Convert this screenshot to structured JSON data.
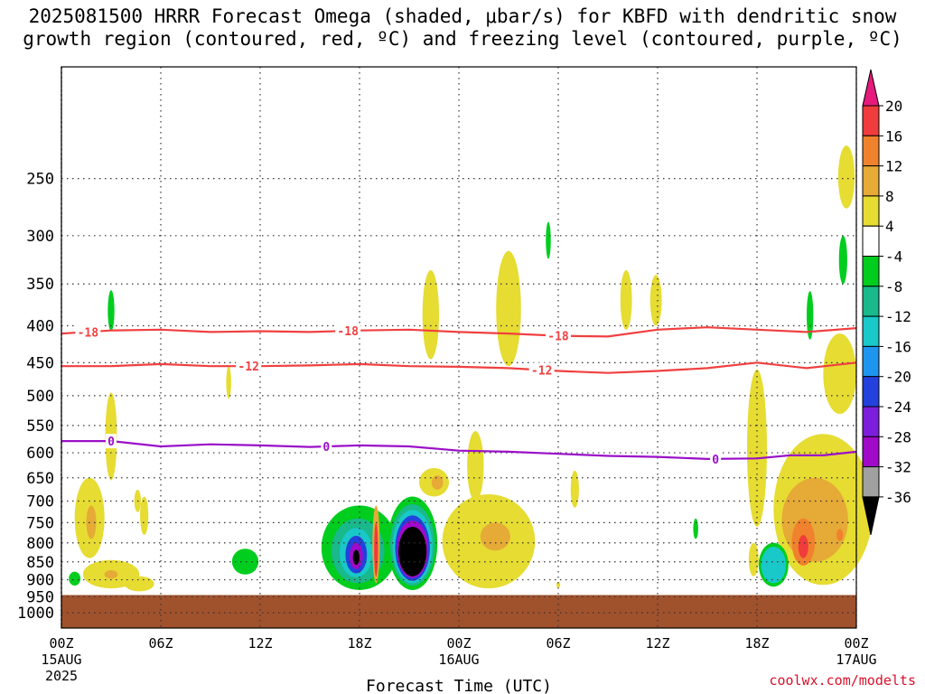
{
  "title_line1": "2025081500 HRRR Forecast Omega (shaded, μbar/s) for KBFD with dendritic snow",
  "title_line2": "growth region (contoured, red, ºC) and freezing level (contoured, purple, ºC)",
  "credit": "coolwx.com/modelts",
  "colors": {
    "ground": "#a0522d",
    "dendritic_contour": "#f04040",
    "freezing_contour": "#9a10c8"
  },
  "chart_data": {
    "type": "heatmap",
    "title": "2025081500 HRRR Forecast Omega (shaded, μbar/s) for KBFD with dendritic snow growth region (contoured, red, ºC) and freezing level (contoured, purple, ºC)",
    "xlabel": "Forecast Time (UTC)",
    "ylabel": "",
    "xlim": [
      0,
      48
    ],
    "ylim": [
      1050,
      175
    ],
    "y_scale": "log-pressure",
    "grid": true,
    "x_ticks": [
      {
        "hour": 0,
        "label": "00Z",
        "sub1": "15AUG",
        "sub2": "2025"
      },
      {
        "hour": 6,
        "label": "06Z",
        "sub1": "",
        "sub2": ""
      },
      {
        "hour": 12,
        "label": "12Z",
        "sub1": "",
        "sub2": ""
      },
      {
        "hour": 18,
        "label": "18Z",
        "sub1": "",
        "sub2": ""
      },
      {
        "hour": 24,
        "label": "00Z",
        "sub1": "16AUG",
        "sub2": ""
      },
      {
        "hour": 30,
        "label": "06Z",
        "sub1": "",
        "sub2": ""
      },
      {
        "hour": 36,
        "label": "12Z",
        "sub1": "",
        "sub2": ""
      },
      {
        "hour": 42,
        "label": "18Z",
        "sub1": "",
        "sub2": ""
      },
      {
        "hour": 48,
        "label": "00Z",
        "sub1": "17AUG",
        "sub2": ""
      }
    ],
    "y_ticks": [
      250,
      300,
      350,
      400,
      450,
      500,
      550,
      600,
      650,
      700,
      750,
      800,
      850,
      900,
      950,
      1000
    ],
    "colorbar": {
      "labels": [
        "20",
        "16",
        "12",
        "8",
        "4",
        "-4",
        "-8",
        "-12",
        "-16",
        "-20",
        "-24",
        "-28",
        "-32",
        "-36"
      ],
      "bins": [
        {
          "lo": 20,
          "hi": null,
          "color": "#e6197d"
        },
        {
          "lo": 16,
          "hi": 20,
          "color": "#f03c3c"
        },
        {
          "lo": 12,
          "hi": 16,
          "color": "#f0822d"
        },
        {
          "lo": 8,
          "hi": 12,
          "color": "#e6aa37"
        },
        {
          "lo": 4,
          "hi": 8,
          "color": "#e6dc32"
        },
        {
          "lo": -4,
          "hi": 4,
          "color": "#ffffff"
        },
        {
          "lo": -8,
          "hi": -4,
          "color": "#00cd1e"
        },
        {
          "lo": -12,
          "hi": -8,
          "color": "#19b98c"
        },
        {
          "lo": -16,
          "hi": -12,
          "color": "#19c8c8"
        },
        {
          "lo": -20,
          "hi": -16,
          "color": "#1e96f0"
        },
        {
          "lo": -24,
          "hi": -20,
          "color": "#2341dc"
        },
        {
          "lo": -28,
          "hi": -24,
          "color": "#7d1edc"
        },
        {
          "lo": -32,
          "hi": -28,
          "color": "#a00ac8"
        },
        {
          "lo": -36,
          "hi": -32,
          "color": "#a0a0a0"
        },
        {
          "lo": null,
          "hi": -36,
          "color": "#000000"
        }
      ]
    },
    "contours": [
      {
        "name": "-18",
        "label": "-18",
        "label_hours": [
          1.6,
          17.3,
          30.0
        ],
        "points": [
          [
            0,
            410
          ],
          [
            3,
            406
          ],
          [
            6,
            405
          ],
          [
            9,
            408
          ],
          [
            12,
            407
          ],
          [
            15,
            408
          ],
          [
            18,
            406
          ],
          [
            21,
            405
          ],
          [
            24,
            408
          ],
          [
            27,
            410
          ],
          [
            30,
            413
          ],
          [
            33,
            414
          ],
          [
            36,
            405
          ],
          [
            39,
            402
          ],
          [
            42,
            405
          ],
          [
            45,
            408
          ],
          [
            48,
            403
          ]
        ]
      },
      {
        "name": "-12",
        "label": "-12",
        "label_hours": [
          11.3,
          29.0
        ],
        "points": [
          [
            0,
            455
          ],
          [
            3,
            455
          ],
          [
            6,
            452
          ],
          [
            9,
            455
          ],
          [
            12,
            455
          ],
          [
            15,
            454
          ],
          [
            18,
            452
          ],
          [
            21,
            455
          ],
          [
            24,
            456
          ],
          [
            27,
            458
          ],
          [
            30,
            462
          ],
          [
            33,
            465
          ],
          [
            36,
            462
          ],
          [
            39,
            458
          ],
          [
            42,
            450
          ],
          [
            45,
            458
          ],
          [
            48,
            450
          ]
        ]
      },
      {
        "name": "0",
        "label": "0",
        "label_hours": [
          3.0,
          16.0,
          39.5
        ],
        "points": [
          [
            0,
            578
          ],
          [
            3,
            578
          ],
          [
            6,
            588
          ],
          [
            9,
            584
          ],
          [
            12,
            586
          ],
          [
            15,
            589
          ],
          [
            18,
            586
          ],
          [
            21,
            588
          ],
          [
            24,
            596
          ],
          [
            27,
            598
          ],
          [
            30,
            602
          ],
          [
            33,
            606
          ],
          [
            36,
            608
          ],
          [
            39,
            612
          ],
          [
            42,
            611
          ],
          [
            44,
            605
          ],
          [
            46,
            605
          ],
          [
            48,
            598
          ]
        ]
      }
    ],
    "omega_regions": [
      {
        "value": 6,
        "h": 1.7,
        "hw": 0.9,
        "p": 745,
        "hp": 95
      },
      {
        "value": 6,
        "h": 3.0,
        "hw": 0.35,
        "p": 575,
        "hp": 80
      },
      {
        "value": 10,
        "h": 1.8,
        "hw": 0.3,
        "p": 750,
        "hp": 40
      },
      {
        "value": 6,
        "h": 3.0,
        "hw": 1.7,
        "p": 885,
        "hp": 40
      },
      {
        "value": 10,
        "h": 3.0,
        "hw": 0.4,
        "p": 885,
        "hp": 12
      },
      {
        "value": 5,
        "h": 4.7,
        "hw": 0.9,
        "p": 912,
        "hp": 22
      },
      {
        "value": 5,
        "h": 5.0,
        "hw": 0.25,
        "p": 735,
        "hp": 45
      },
      {
        "value": 5,
        "h": 4.6,
        "hw": 0.2,
        "p": 700,
        "hp": 25
      },
      {
        "value": 5,
        "h": 10.1,
        "hw": 0.15,
        "p": 480,
        "hp": 25
      },
      {
        "value": -5,
        "h": 3.0,
        "hw": 0.2,
        "p": 382,
        "hp": 25
      },
      {
        "value": -5,
        "h": 0.8,
        "hw": 0.35,
        "p": 897,
        "hp": 20
      },
      {
        "value": -6,
        "h": 11.1,
        "hw": 0.8,
        "p": 850,
        "hp": 35
      },
      {
        "value": -6,
        "h": 18.0,
        "hw": 2.3,
        "p": 820,
        "hp": 110
      },
      {
        "value": -10,
        "h": 17.9,
        "hw": 1.6,
        "p": 825,
        "hp": 85
      },
      {
        "value": -14,
        "h": 17.8,
        "hw": 1.0,
        "p": 828,
        "hp": 65
      },
      {
        "value": -22,
        "h": 17.8,
        "hw": 0.65,
        "p": 832,
        "hp": 50
      },
      {
        "value": -30,
        "h": 17.8,
        "hw": 0.4,
        "p": 835,
        "hp": 35
      },
      {
        "value": -40,
        "h": 17.8,
        "hw": 0.2,
        "p": 838,
        "hp": 20
      },
      {
        "value": 8,
        "h": 19.0,
        "hw": 0.22,
        "p": 810,
        "hp": 100
      },
      {
        "value": 18,
        "h": 19.0,
        "hw": 0.12,
        "p": 820,
        "hp": 70
      },
      {
        "value": -6,
        "h": 21.2,
        "hw": 1.5,
        "p": 810,
        "hp": 120
      },
      {
        "value": -10,
        "h": 21.2,
        "hw": 1.35,
        "p": 812,
        "hp": 105
      },
      {
        "value": -14,
        "h": 21.2,
        "hw": 1.2,
        "p": 815,
        "hp": 95
      },
      {
        "value": -22,
        "h": 21.2,
        "hw": 1.05,
        "p": 818,
        "hp": 85
      },
      {
        "value": -30,
        "h": 21.2,
        "hw": 0.95,
        "p": 820,
        "hp": 75
      },
      {
        "value": -40,
        "h": 21.2,
        "hw": 0.85,
        "p": 825,
        "hp": 65
      },
      {
        "value": 6,
        "h": 22.5,
        "hw": 0.9,
        "p": 660,
        "hp": 30
      },
      {
        "value": 10,
        "h": 22.7,
        "hw": 0.35,
        "p": 660,
        "hp": 15
      },
      {
        "value": 6,
        "h": 22.3,
        "hw": 0.5,
        "p": 390,
        "hp": 55
      },
      {
        "value": 6,
        "h": 25.8,
        "hw": 2.8,
        "p": 805,
        "hp": 120
      },
      {
        "value": 6,
        "h": 25.0,
        "hw": 0.5,
        "p": 630,
        "hp": 70
      },
      {
        "value": 10,
        "h": 26.2,
        "hw": 0.9,
        "p": 785,
        "hp": 35
      },
      {
        "value": 6,
        "h": 27.0,
        "hw": 0.75,
        "p": 385,
        "hp": 70
      },
      {
        "value": -5,
        "h": 29.4,
        "hw": 0.15,
        "p": 305,
        "hp": 18
      },
      {
        "value": 5,
        "h": 31.0,
        "hw": 0.25,
        "p": 675,
        "hp": 40
      },
      {
        "value": 5,
        "h": 30.0,
        "hw": 0.12,
        "p": 915,
        "hp": 8
      },
      {
        "value": 6,
        "h": 34.1,
        "hw": 0.35,
        "p": 370,
        "hp": 35
      },
      {
        "value": 6,
        "h": 35.9,
        "hw": 0.35,
        "p": 370,
        "hp": 30
      },
      {
        "value": -5,
        "h": 38.3,
        "hw": 0.15,
        "p": 765,
        "hp": 25
      },
      {
        "value": 6,
        "h": 42.0,
        "hw": 0.6,
        "p": 610,
        "hp": 150
      },
      {
        "value": 6,
        "h": 41.8,
        "hw": 0.3,
        "p": 845,
        "hp": 45
      },
      {
        "value": -6,
        "h": 43.0,
        "hw": 0.9,
        "p": 860,
        "hp": 60
      },
      {
        "value": -14,
        "h": 43.0,
        "hw": 0.75,
        "p": 860,
        "hp": 50
      },
      {
        "value": -5,
        "h": 45.2,
        "hw": 0.2,
        "p": 388,
        "hp": 30
      },
      {
        "value": 6,
        "h": 46.0,
        "hw": 3.0,
        "p": 740,
        "hp": 175
      },
      {
        "value": 6,
        "h": 47.0,
        "hw": 1.0,
        "p": 470,
        "hp": 60
      },
      {
        "value": 10,
        "h": 45.5,
        "hw": 2.0,
        "p": 750,
        "hp": 100
      },
      {
        "value": 14,
        "h": 44.8,
        "hw": 0.7,
        "p": 800,
        "hp": 60
      },
      {
        "value": 18,
        "h": 44.8,
        "hw": 0.3,
        "p": 810,
        "hp": 30
      },
      {
        "value": 14,
        "h": 47.0,
        "hw": 0.2,
        "p": 780,
        "hp": 15
      },
      {
        "value": 6,
        "h": 47.4,
        "hw": 0.5,
        "p": 250,
        "hp": 25
      },
      {
        "value": -5,
        "h": 47.2,
        "hw": 0.25,
        "p": 325,
        "hp": 25
      }
    ],
    "ground_below_pressure": 945
  }
}
